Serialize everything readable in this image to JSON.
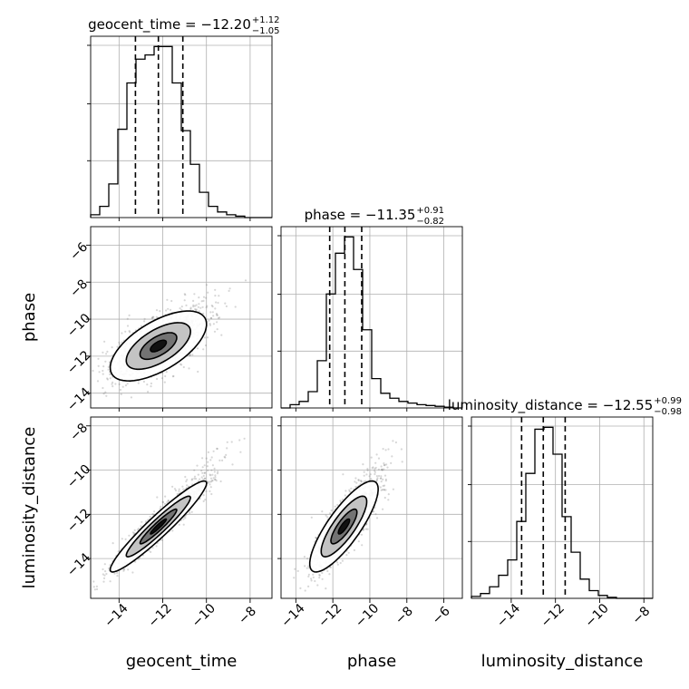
{
  "chart_data": {
    "type": "corner",
    "grid": true,
    "parameters": [
      "geocent_time",
      "phase",
      "luminosity_distance"
    ],
    "axis_labels": {
      "x": [
        "geocent_time",
        "phase",
        "luminosity_distance"
      ],
      "y": [
        "phase",
        "luminosity_distance"
      ]
    },
    "ranges": {
      "geocent_time": [
        -15.3,
        -7.0
      ],
      "phase": [
        -14.8,
        -5.0
      ],
      "luminosity_distance": [
        -15.8,
        -7.6
      ]
    },
    "ticks": {
      "geocent_time": [
        -14,
        -12,
        -10,
        -8
      ],
      "phase": [
        -14,
        -12,
        -10,
        -8,
        -6
      ],
      "luminosity_distance": [
        -14,
        -12,
        -10,
        -8
      ]
    },
    "tick_labels": {
      "geocent_time": [
        "−14",
        "−12",
        "−10",
        "−8"
      ],
      "phase": [
        "−14",
        "−12",
        "−10",
        "−8",
        "−6"
      ],
      "luminosity_distance": [
        "−14",
        "−12",
        "−10",
        "−8"
      ]
    },
    "titles": [
      {
        "param": "geocent_time",
        "prefix": "geocent_time = −12.20",
        "plus": "+1.12",
        "minus": "−1.05"
      },
      {
        "param": "phase",
        "prefix": "phase = −11.35",
        "plus": "+0.91",
        "minus": "−0.82"
      },
      {
        "param": "luminosity_distance",
        "prefix": "luminosity_distance = −12.55",
        "plus": "+0.99",
        "minus": "−0.98"
      }
    ],
    "quantiles": {
      "geocent_time": [
        -13.25,
        -12.2,
        -11.08
      ],
      "phase": [
        -12.17,
        -11.35,
        -10.44
      ],
      "luminosity_distance": [
        -13.53,
        -12.55,
        -11.56
      ]
    },
    "histograms": {
      "geocent_time": {
        "edges": [
          -15.3,
          -14.885,
          -14.47,
          -14.055,
          -13.64,
          -13.225,
          -12.81,
          -12.395,
          -11.98,
          -11.565,
          -11.15,
          -10.735,
          -10.32,
          -9.905,
          -9.49,
          -9.075,
          -8.66,
          -8.245,
          -7.83,
          -7.415,
          -7.0
        ],
        "counts": [
          2,
          8,
          24,
          63,
          96,
          113,
          116,
          122,
          122,
          96,
          62,
          38,
          18,
          8,
          4,
          2,
          1,
          0,
          0,
          0
        ]
      },
      "phase": {
        "edges": [
          -14.8,
          -14.31,
          -13.82,
          -13.33,
          -12.84,
          -12.35,
          -11.86,
          -11.37,
          -10.88,
          -10.39,
          -9.9,
          -9.41,
          -8.92,
          -8.43,
          -7.94,
          -7.45,
          -6.96,
          -6.47,
          -5.98,
          -5.49,
          -5.0
        ],
        "counts": [
          0,
          4,
          8,
          20,
          58,
          140,
          190,
          210,
          170,
          96,
          36,
          18,
          12,
          8,
          6,
          4,
          3,
          2,
          1,
          0
        ]
      },
      "luminosity_distance": {
        "edges": [
          -15.8,
          -15.39,
          -14.98,
          -14.57,
          -14.16,
          -13.75,
          -13.34,
          -12.93,
          -12.52,
          -12.11,
          -11.7,
          -11.29,
          -10.88,
          -10.47,
          -10.06,
          -9.65,
          -9.24,
          -8.83,
          -8.42,
          -8.01,
          -7.6
        ],
        "counts": [
          2,
          5,
          12,
          24,
          40,
          80,
          130,
          176,
          178,
          150,
          85,
          48,
          20,
          8,
          3,
          1,
          0,
          0,
          0,
          0
        ]
      }
    },
    "pairs": [
      {
        "x": "geocent_time",
        "y": "phase",
        "mean": [
          -12.2,
          -11.45
        ],
        "sd": [
          1.05,
          0.9
        ],
        "rho": 0.62
      },
      {
        "x": "geocent_time",
        "y": "luminosity_distance",
        "mean": [
          -12.2,
          -12.55
        ],
        "sd": [
          1.05,
          0.98
        ],
        "rho": 0.95
      },
      {
        "x": "phase",
        "y": "luminosity_distance",
        "mean": [
          -11.4,
          -12.55
        ],
        "sd": [
          0.88,
          0.98
        ],
        "rho": 0.82
      }
    ],
    "colors": {
      "line": "#000000",
      "grid": "#b0b0b0",
      "scatter": "#6f6f6f"
    }
  }
}
